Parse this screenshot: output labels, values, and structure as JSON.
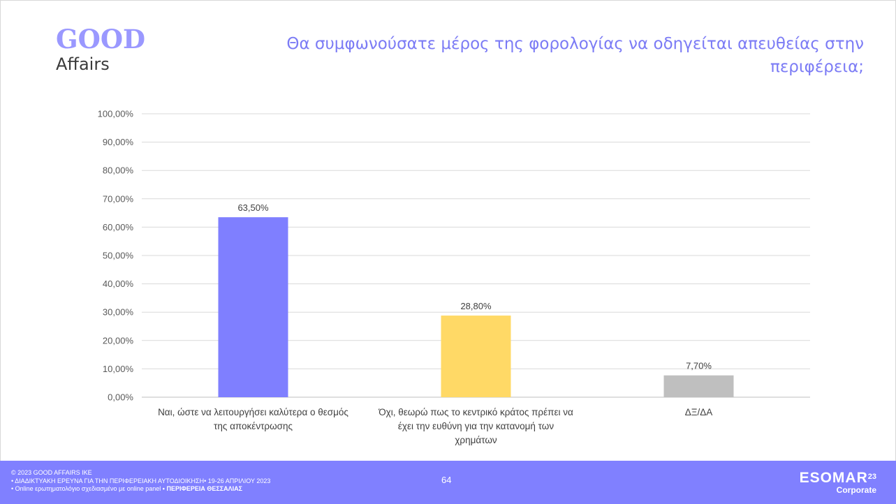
{
  "logo": {
    "line1": "GOOD",
    "line2": "Affairs"
  },
  "title": "Θα συμφωνούσατε μέρος της φορολογίας να οδηγείται απευθείας στην περιφέρεια;",
  "chart_data": {
    "type": "bar",
    "categories": [
      "Ναι, ώστε να λειτουργήσει καλύτερα ο θεσμός της αποκέντρωσης",
      "Όχι, θεωρώ πως το κεντρικό κράτος πρέπει να έχει την ευθύνη για την κατανομή των χρημάτων",
      "ΔΞ/ΔΑ"
    ],
    "category_lines": [
      [
        "Ναι, ώστε να λειτουργήσει καλύτερα ο θεσμός",
        "της αποκέντρωσης"
      ],
      [
        "Όχι, θεωρώ πως το κεντρικό κράτος πρέπει να",
        "έχει την ευθύνη για την κατανομή των",
        "χρημάτων"
      ],
      [
        "ΔΞ/ΔΑ"
      ]
    ],
    "values": [
      63.5,
      28.8,
      7.7
    ],
    "data_labels": [
      "63,50%",
      "28,80%",
      "7,70%"
    ],
    "bar_colors": [
      "#7f7fff",
      "#ffd966",
      "#bfbfbf"
    ],
    "ylim": [
      0,
      100
    ],
    "yticks": [
      0,
      10,
      20,
      30,
      40,
      50,
      60,
      70,
      80,
      90,
      100
    ],
    "ytick_labels": [
      "0,00%",
      "10,00%",
      "20,00%",
      "30,00%",
      "40,00%",
      "50,00%",
      "60,00%",
      "70,00%",
      "80,00%",
      "90,00%",
      "100,00%"
    ],
    "grid": true,
    "legend": "none"
  },
  "footer": {
    "line1": "© 2023 GOOD AFFAIRS IKE",
    "line2": "• ΔΙΑΔΙΚΤΥΑΚΗ ΕΡΕΥΝΑ  ΓΙΑ ΤΗΝ ΠΕΡΙΦΕΡΕΙΑΚΗ ΑΥΤΟΔΙΟΙΚΗΣΗ• 19-26 ΑΠΡΙΛΙΟΥ 2023",
    "line3": "• Online ερωτηματολόγιο σχεδιασμένο με online panel  ",
    "line3_bold": "• ΠΕΡΙΦΕΡΕΙΑ ΘΕΣΣΑΛΙΑΣ",
    "page": "64",
    "esomar": "ESOMAR",
    "esomar_sup": "23",
    "esomar_sub": "Corporate"
  }
}
